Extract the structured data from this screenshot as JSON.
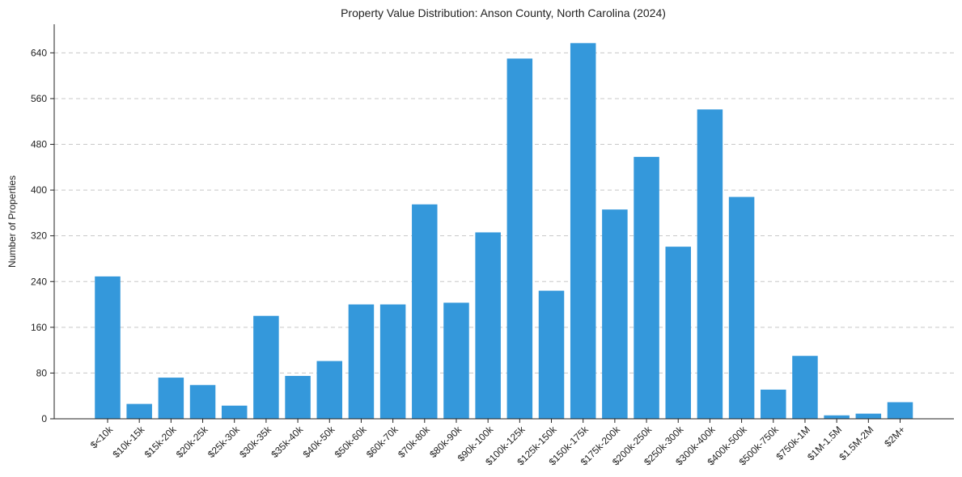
{
  "chart_data": {
    "type": "bar",
    "title": "Property Value Distribution: Anson County, North Carolina (2024)",
    "xlabel": "",
    "ylabel": "Number of Properties",
    "ylim": [
      0,
      690
    ],
    "yticks": [
      0,
      80,
      160,
      240,
      320,
      400,
      480,
      560,
      640
    ],
    "grid": "y-dashed",
    "bar_color": "#3498db",
    "categories": [
      "$<10k",
      "$10k-15k",
      "$15k-20k",
      "$20k-25k",
      "$25k-30k",
      "$30k-35k",
      "$35k-40k",
      "$40k-50k",
      "$50k-60k",
      "$60k-70k",
      "$70k-80k",
      "$80k-90k",
      "$90k-100k",
      "$100k-125k",
      "$125k-150k",
      "$150k-175k",
      "$175k-200k",
      "$200k-250k",
      "$250k-300k",
      "$300k-400k",
      "$400k-500k",
      "$500k-750k",
      "$750k-1M",
      "$1M-1.5M",
      "$1.5M-2M",
      "$2M+"
    ],
    "values": [
      249,
      26,
      72,
      59,
      23,
      180,
      75,
      101,
      200,
      200,
      375,
      203,
      326,
      630,
      224,
      657,
      366,
      458,
      301,
      541,
      388,
      51,
      110,
      6,
      9,
      29
    ]
  }
}
